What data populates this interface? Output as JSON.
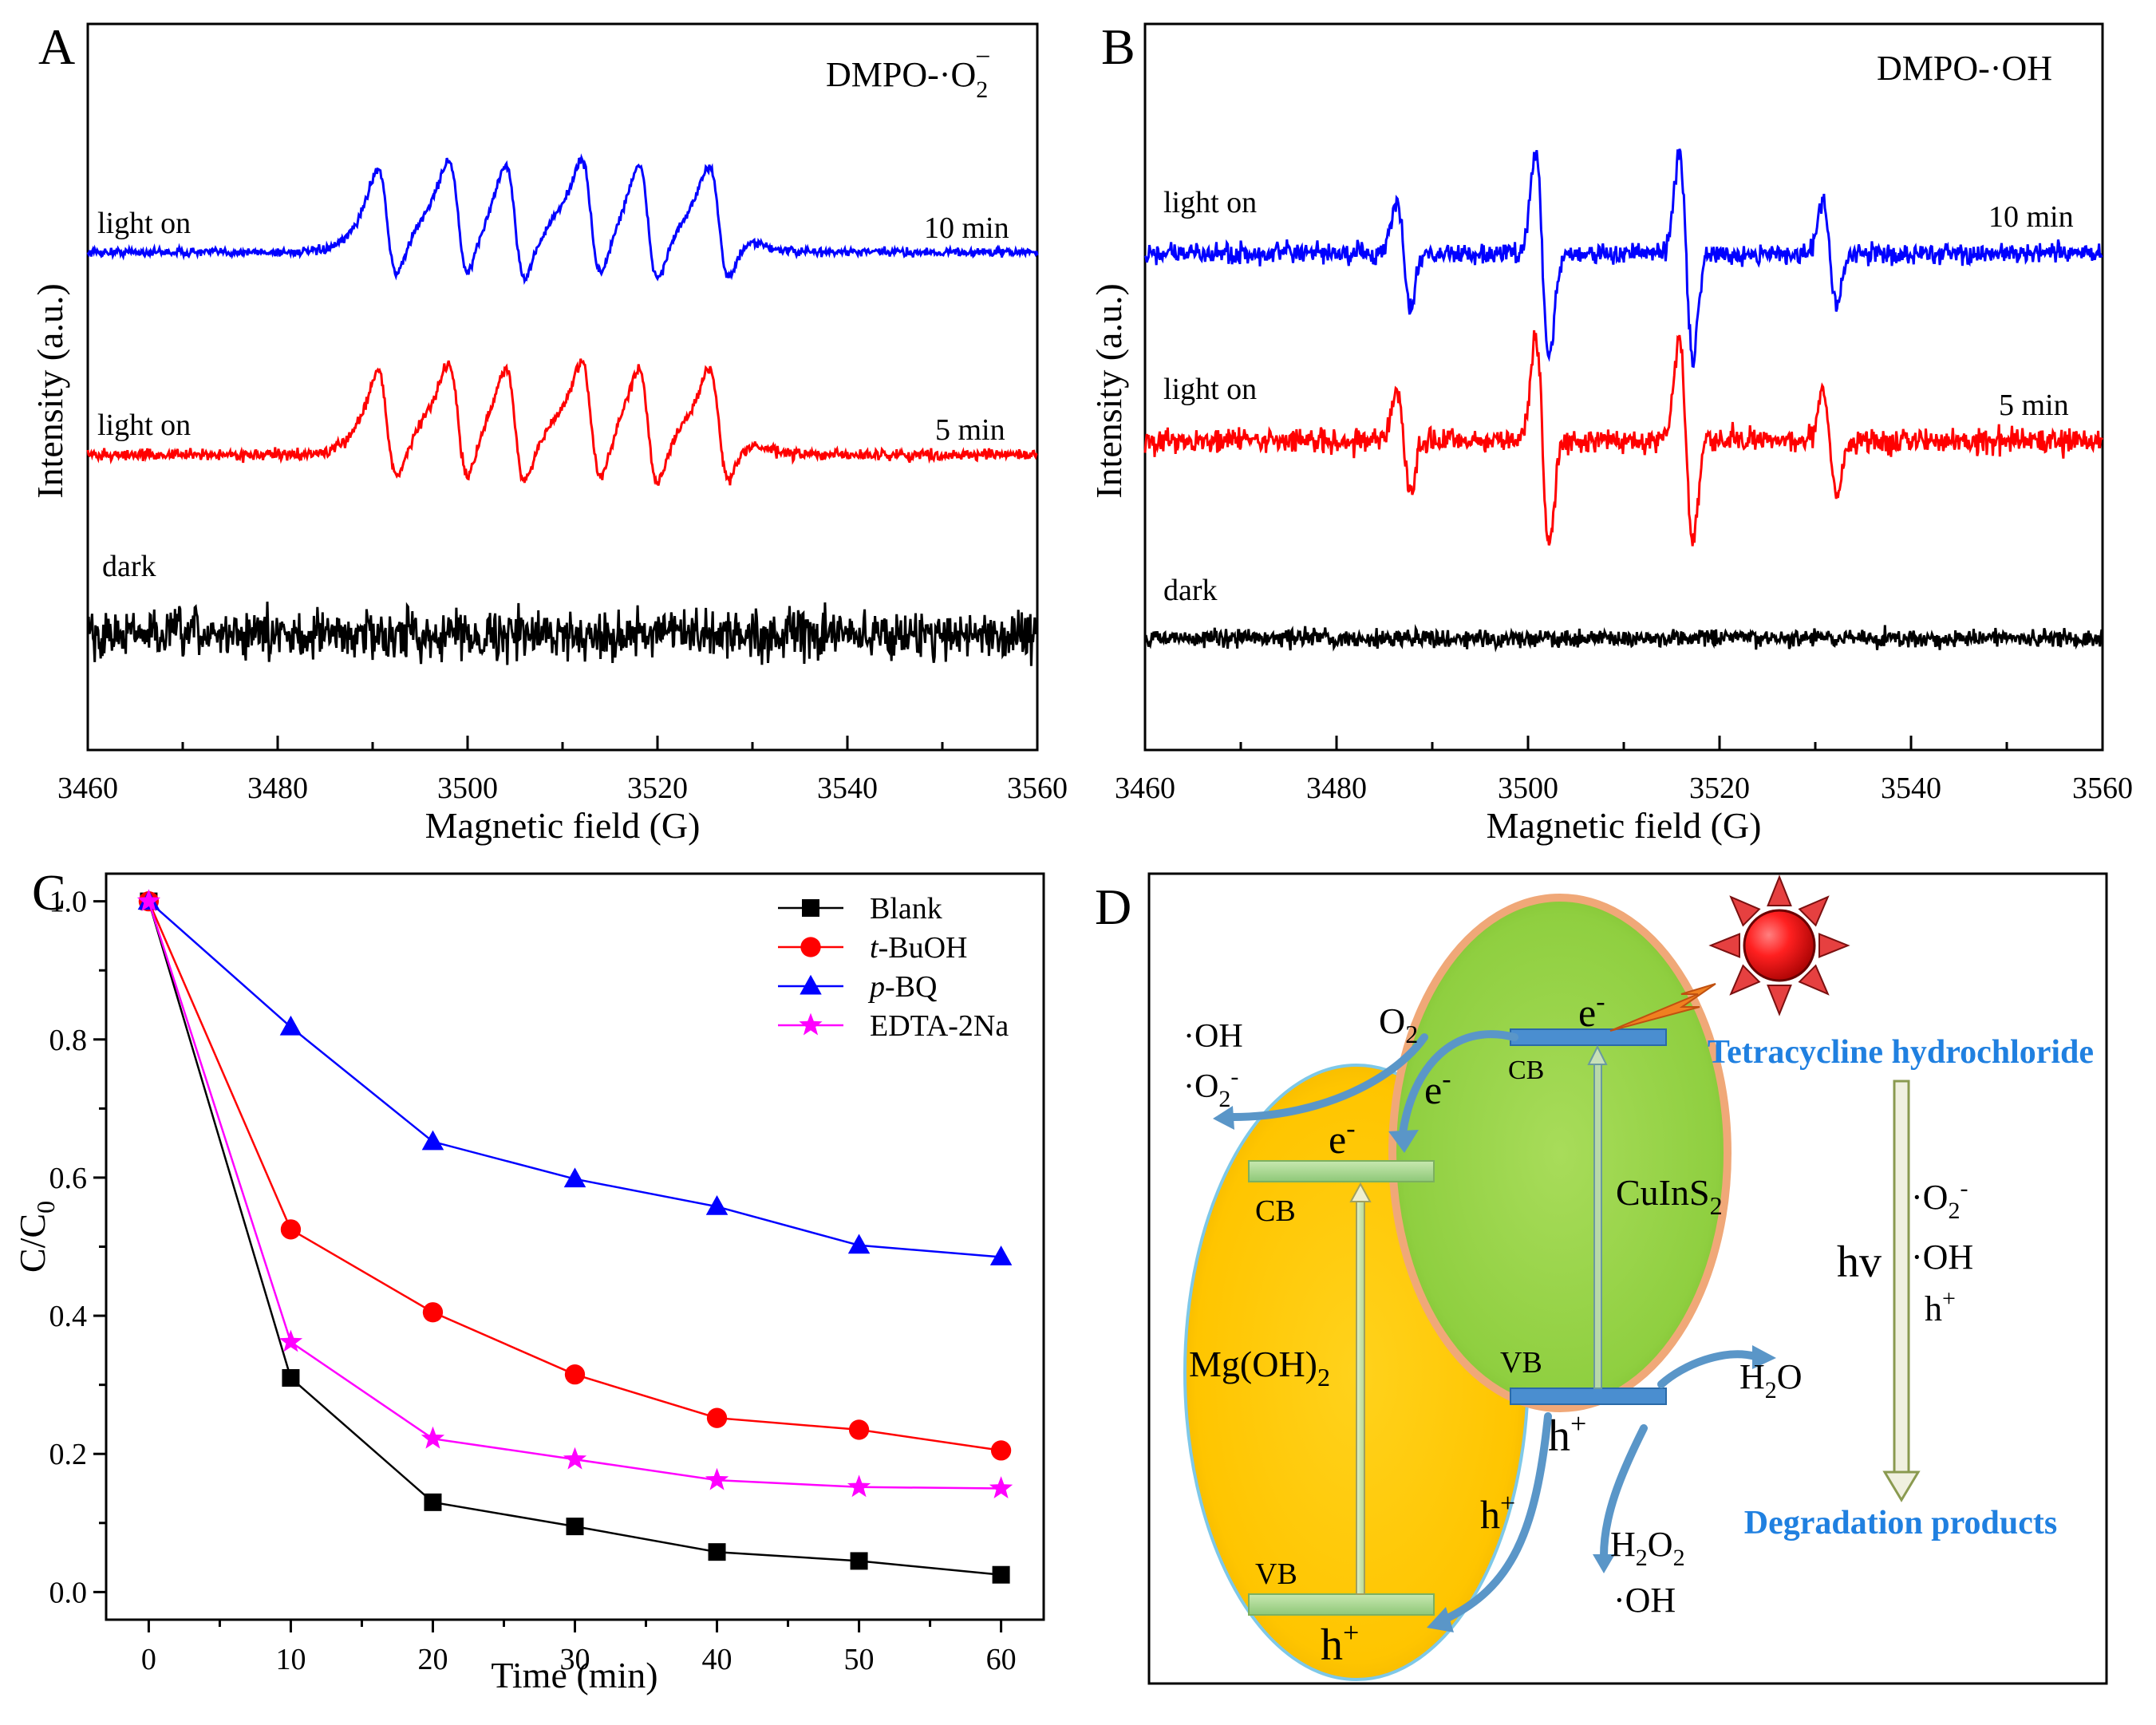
{
  "panels": {
    "A": {
      "letter": "A",
      "species": "DMPO-·O",
      "species_sub": "2",
      "species_sup": "−"
    },
    "B": {
      "letter": "B",
      "species": "DMPO-·OH"
    },
    "C": {
      "letter": "C"
    },
    "D": {
      "letter": "D"
    }
  },
  "epr_labels": {
    "light_on": "light on",
    "dark": "dark",
    "t10": "10 min",
    "t5": "5 min",
    "ylabel": "Intensity (a.u.)",
    "xlabel": "Magnetic field (G)"
  },
  "chart_data": [
    {
      "panel": "A",
      "type": "line",
      "title": "DMPO-·O2−",
      "xlabel": "Magnetic field (G)",
      "ylabel": "Intensity (a.u.)",
      "xlim": [
        3460,
        3560
      ],
      "xticks": [
        3460,
        3480,
        3500,
        3520,
        3540,
        3560
      ],
      "series": [
        {
          "name": "light on 10 min",
          "color": "#0000ff",
          "kind": "superoxide",
          "offset": 0,
          "amp": 1,
          "noise": 0.04
        },
        {
          "name": "light on 5 min",
          "color": "#ff0000",
          "kind": "superoxide",
          "offset": 1,
          "amp": 1,
          "noise": 0.05
        },
        {
          "name": "dark",
          "color": "#000000",
          "kind": "noise",
          "offset": 2,
          "amp": 0,
          "noise": 0.22
        }
      ],
      "peak_positions_G": [
        3491.5,
        3499,
        3505,
        3513,
        3519,
        3526.5
      ]
    },
    {
      "panel": "B",
      "type": "line",
      "title": "DMPO-·OH",
      "xlabel": "Magnetic field (G)",
      "ylabel": "Intensity (a.u.)",
      "xlim": [
        3460,
        3560
      ],
      "xticks": [
        3460,
        3480,
        3500,
        3520,
        3540,
        3560
      ],
      "series": [
        {
          "name": "light on 10 min",
          "color": "#0000ff",
          "kind": "hydroxyl",
          "offset": 0,
          "amp": 1,
          "noise": 0.17
        },
        {
          "name": "light on 5 min",
          "color": "#ff0000",
          "kind": "hydroxyl",
          "offset": 1,
          "amp": 1,
          "noise": 0.2
        },
        {
          "name": "dark",
          "color": "#000000",
          "kind": "noise",
          "offset": 2,
          "amp": 0,
          "noise": 0.15
        }
      ],
      "line_positions_G": [
        3487,
        3501.5,
        3516.5,
        3531.5
      ],
      "line_heights": [
        0.5,
        1,
        1,
        0.5
      ]
    },
    {
      "panel": "C",
      "type": "line",
      "xlabel": "Time (min)",
      "ylabel": "C/C0",
      "ylabel_main": "C/C",
      "ylabel_sub": "0",
      "xlim": [
        -3,
        63
      ],
      "ylim": [
        -0.04,
        1.04
      ],
      "xticks": [
        0,
        10,
        20,
        30,
        40,
        50,
        60
      ],
      "yticks": [
        "0.0",
        "0.2",
        "0.4",
        "0.6",
        "0.8",
        "1.0"
      ],
      "x": [
        0,
        10,
        20,
        30,
        40,
        50,
        60
      ],
      "series": [
        {
          "name": "Blank",
          "italic_prefix": "",
          "rest": "Blank",
          "color": "#000000",
          "marker": "square",
          "values": [
            1.0,
            0.31,
            0.13,
            0.095,
            0.058,
            0.045,
            0.025
          ]
        },
        {
          "name": "t-BuOH",
          "italic_prefix": "t",
          "rest": "-BuOH",
          "color": "#ff0000",
          "marker": "circle",
          "values": [
            1.0,
            0.525,
            0.405,
            0.315,
            0.252,
            0.235,
            0.205
          ]
        },
        {
          "name": "p-BQ",
          "italic_prefix": "p",
          "rest": "-BQ",
          "color": "#0000ff",
          "marker": "triangle",
          "values": [
            1.0,
            0.818,
            0.652,
            0.598,
            0.558,
            0.502,
            0.485
          ]
        },
        {
          "name": "EDTA-2Na",
          "italic_prefix": "",
          "rest": "EDTA-2Na",
          "color": "#ff00ff",
          "marker": "star",
          "values": [
            1.0,
            0.362,
            0.222,
            0.192,
            0.162,
            0.152,
            0.15
          ]
        }
      ]
    }
  ],
  "diagram": {
    "mgoh": {
      "name": "Mg(OH)",
      "sub": "2",
      "cb": "CB",
      "vb": "VB",
      "electron": "e",
      "electron_sup": "-",
      "hole": "h",
      "hole_sup": "+"
    },
    "cuins": {
      "name": "CuInS",
      "sub": "2",
      "cb": "CB",
      "vb": "VB",
      "electron": "e",
      "electron_sup": "-",
      "hole": "h",
      "hole_sup": "+"
    },
    "o2": {
      "text": "O",
      "sub": "2"
    },
    "e_transfer": {
      "text": "e",
      "sup": "-"
    },
    "h_transfer": {
      "text": "h",
      "sup": "+"
    },
    "radicals_left": {
      "oh": "·OH",
      "o2": "·O",
      "o2_sub": "2",
      "o2_sup": "-"
    },
    "h2o": {
      "text": "H",
      "sub": "2",
      "rest": "O"
    },
    "h2o2": {
      "text": "H",
      "sub1": "2",
      "mid": "O",
      "sub2": "2",
      "oh": "·OH"
    },
    "tc": "Tetracycline hydrochloride",
    "deg": "Degradation products",
    "hv": "hv",
    "species_right": {
      "o2": "·O",
      "o2_sub": "2",
      "o2_sup": "-",
      "oh": "·OH",
      "h": "h",
      "h_sup": "+"
    }
  }
}
